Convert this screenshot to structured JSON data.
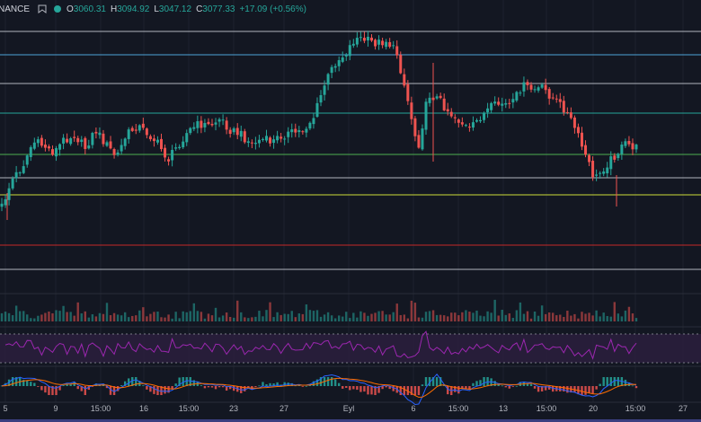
{
  "legend": {
    "exchange": "NANCE",
    "ohlc": [
      {
        "k": "O",
        "v": "3060.31"
      },
      {
        "k": "H",
        "v": "3094.92"
      },
      {
        "k": "L",
        "v": "3047.12"
      },
      {
        "k": "C",
        "v": "3077.33"
      }
    ],
    "change": "+17.09 (+0.56%)",
    "status_dot_color": "#26a69a"
  },
  "colors": {
    "background": "#131722",
    "up": "#26a69a",
    "down": "#ef5350",
    "rsi_line": "#9c27b0",
    "rsi_band": "#2a1e3c",
    "macd_line": "#2962ff",
    "signal_line": "#ff6d00",
    "grid": "#1e222d"
  },
  "chart_data": {
    "type": "candlestick",
    "x_axis_ticks": [
      "5",
      "9",
      "15:00",
      "16",
      "15:00",
      "23",
      "27",
      "Eyl",
      "6",
      "15:00",
      "13",
      "15:00",
      "20",
      "15:00",
      "27"
    ],
    "horizontal_levels": [
      {
        "color": "#b2b5be",
        "role": "resistance"
      },
      {
        "color": "#4ea3d8",
        "role": "resistance"
      },
      {
        "color": "#b2b5be",
        "role": "resistance"
      },
      {
        "color": "#26a69a",
        "role": "resistance"
      },
      {
        "color": "#4caf50",
        "role": "support"
      },
      {
        "color": "#b2b5be",
        "role": "support"
      },
      {
        "color": "#cddc39",
        "role": "support"
      },
      {
        "color": "#c62828",
        "role": "support"
      },
      {
        "color": "#b2b5be",
        "role": "support"
      }
    ],
    "price_path": [
      230,
      200,
      185,
      158,
      162,
      170,
      155,
      150,
      165,
      145,
      160,
      175,
      150,
      140,
      148,
      160,
      178,
      160,
      145,
      138,
      140,
      132,
      145,
      150,
      160,
      155,
      158,
      150,
      148,
      145,
      130,
      95,
      70,
      60,
      42,
      45,
      48,
      45,
      60,
      110,
      165,
      105,
      110,
      125,
      135,
      145,
      130,
      120,
      115,
      118,
      95,
      100,
      98,
      110,
      120,
      140,
      170,
      200,
      185,
      172,
      160,
      165
    ],
    "indicators": [
      "Volume",
      "RSI",
      "MACD"
    ]
  }
}
